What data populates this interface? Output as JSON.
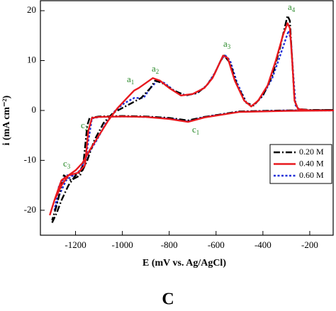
{
  "chart_data": {
    "type": "line",
    "xlabel": "E (mV vs. Ag/AgCl)",
    "ylabel": "i (mA cm⁻²)",
    "caption": "C",
    "xlim": [
      -1350,
      -100
    ],
    "ylim": [
      -25,
      22
    ],
    "xticks": [
      -1200,
      -1000,
      -800,
      -600,
      -400,
      -200
    ],
    "yticks": [
      -20,
      -10,
      0,
      10,
      20
    ],
    "legend": "right",
    "annotations": [
      {
        "text": "a",
        "subscript": "1"
      },
      {
        "text": "a",
        "subscript": "2"
      },
      {
        "text": "a",
        "subscript": "3"
      },
      {
        "text": "a",
        "subscript": "4"
      },
      {
        "text": "c",
        "subscript": "1"
      },
      {
        "text": "c",
        "subscript": "2"
      },
      {
        "text": "c",
        "subscript": "3"
      }
    ],
    "series": [
      {
        "name": "0.20 M",
        "color": "#000000",
        "dash": "dash-dot",
        "x": [
          -1300,
          -1280,
          -1260,
          -1230,
          -1200,
          -1170,
          -1150,
          -1120,
          -1080,
          -1040,
          -1000,
          -960,
          -920,
          -880,
          -860,
          -830,
          -780,
          -730,
          -680,
          -640,
          -610,
          -580,
          -565,
          -540,
          -510,
          -470,
          -440,
          -400,
          -360,
          -330,
          -310,
          -295,
          -285,
          -275,
          -265,
          -250,
          -200,
          -100,
          -300,
          -500,
          -650,
          -720,
          -800,
          -900,
          -1000,
          -1100,
          -1140,
          -1150,
          -1165,
          -1180,
          -1220,
          -1250,
          -1280,
          -1300
        ],
        "values": [
          -22.5,
          -20.5,
          -18,
          -15,
          -13,
          -12,
          -10,
          -6,
          -2.5,
          -0.5,
          0.5,
          1.5,
          2.5,
          4.5,
          6,
          5.5,
          4,
          3,
          3.5,
          5,
          7,
          10,
          11,
          9.5,
          5,
          1.5,
          1,
          3,
          7,
          12,
          16,
          19,
          18,
          10,
          2,
          0.3,
          0.1,
          0.1,
          0,
          -0.2,
          -1.3,
          -2,
          -1.5,
          -1.2,
          -1.1,
          -1.2,
          -1.5,
          -3,
          -10,
          -13,
          -14,
          -13,
          -19,
          -22
        ]
      },
      {
        "name": "0.40 M",
        "color": "#e8191e",
        "dash": "solid",
        "x": [
          -1310,
          -1290,
          -1260,
          -1230,
          -1200,
          -1170,
          -1140,
          -1100,
          -1060,
          -1020,
          -980,
          -950,
          -930,
          -900,
          -870,
          -840,
          -800,
          -750,
          -700,
          -650,
          -615,
          -590,
          -570,
          -550,
          -520,
          -480,
          -450,
          -420,
          -380,
          -345,
          -315,
          -295,
          -285,
          -275,
          -265,
          -250,
          -200,
          -100,
          -300,
          -500,
          -650,
          -720,
          -800,
          -900,
          -1000,
          -1100,
          -1130,
          -1145,
          -1160,
          -1190,
          -1230,
          -1260,
          -1290,
          -1310
        ],
        "values": [
          -21,
          -18,
          -15,
          -13,
          -12,
          -10.5,
          -8,
          -5,
          -2,
          0.5,
          2.5,
          4,
          4.5,
          5.5,
          6.5,
          6,
          4.5,
          3,
          3.3,
          4.5,
          6.5,
          9,
          11,
          10.5,
          6,
          2,
          0.8,
          2,
          5,
          10,
          15,
          17.5,
          16.5,
          10,
          2,
          0.3,
          0,
          0,
          -0.1,
          -0.3,
          -1.4,
          -2.3,
          -1.7,
          -1.3,
          -1.2,
          -1.3,
          -1.5,
          -4,
          -11,
          -12.5,
          -13,
          -14,
          -18,
          -21
        ]
      },
      {
        "name": "0.60 M",
        "color": "#1f2fd8",
        "dash": "dotted",
        "x": [
          -1290,
          -1270,
          -1240,
          -1210,
          -1180,
          -1150,
          -1110,
          -1070,
          -1030,
          -990,
          -950,
          -910,
          -880,
          -850,
          -820,
          -780,
          -730,
          -680,
          -640,
          -605,
          -575,
          -560,
          -540,
          -510,
          -470,
          -440,
          -400,
          -360,
          -330,
          -305,
          -290,
          -280,
          -270,
          -260,
          -245,
          -200,
          -100,
          -300,
          -500,
          -650,
          -720,
          -800,
          -900,
          -1000,
          -1100,
          -1130,
          -1145,
          -1160,
          -1200,
          -1240,
          -1270,
          -1290
        ],
        "values": [
          -20,
          -17,
          -14,
          -13,
          -12,
          -9,
          -6,
          -2.5,
          0,
          1.5,
          2.5,
          2.5,
          4.5,
          6,
          5.5,
          4,
          3,
          3.5,
          5,
          7.5,
          10.5,
          11,
          10,
          5.5,
          1.5,
          1,
          3,
          6.5,
          10.5,
          14,
          16,
          14,
          7,
          1,
          0.2,
          0,
          0,
          0,
          -0.2,
          -1.3,
          -2.2,
          -1.6,
          -1.3,
          -1.2,
          -1.3,
          -1.6,
          -6,
          -11,
          -13,
          -13,
          -15,
          -20
        ]
      }
    ]
  }
}
